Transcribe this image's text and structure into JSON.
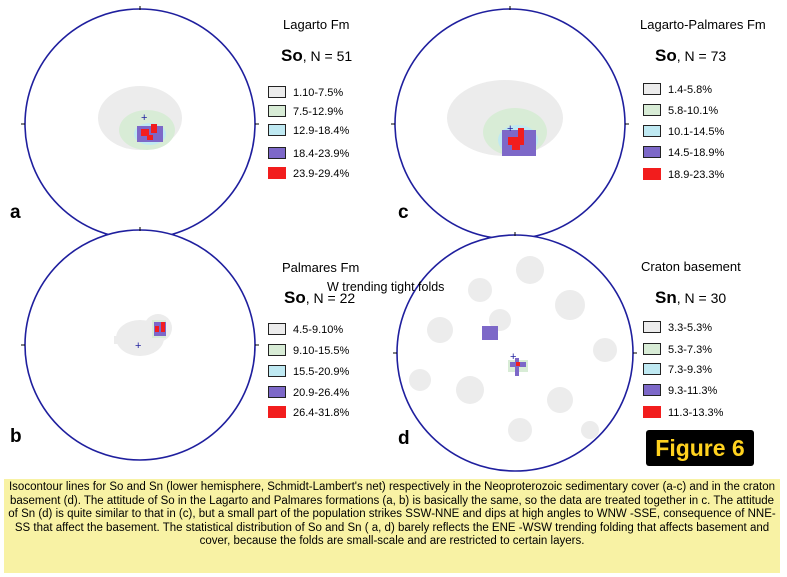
{
  "panels": [
    {
      "letter": "a",
      "formation": "Lagarto Fm",
      "symbol": "So",
      "n_text": ", N = 51",
      "legend": [
        "1.10-7.5%",
        "7.5-12.9%",
        "12.9-18.4%",
        "18.4-23.9%",
        "23.9-29.4%"
      ]
    },
    {
      "letter": "c",
      "formation": "Lagarto-Palmares Fm",
      "symbol": "So",
      "n_text": ", N = 73",
      "legend": [
        "1.4-5.8%",
        "5.8-10.1%",
        "10.1-14.5%",
        "14.5-18.9%",
        "18.9-23.3%"
      ]
    },
    {
      "letter": "b",
      "formation": "Palmares Fm",
      "symbol": "So",
      "n_text": ", N = 22",
      "legend": [
        "4.5-9.10%",
        "9.10-15.5%",
        "15.5-20.9%",
        "20.9-26.4%",
        "26.4-31.8%"
      ]
    },
    {
      "letter": "d",
      "formation": "Craton basement",
      "symbol": "Sn",
      "n_text": ", N = 30",
      "legend": [
        "3.3-5.3%",
        "5.3-7.3%",
        "7.3-9.3%",
        "9.3-11.3%",
        "11.3-13.3%"
      ]
    }
  ],
  "legend_colors": [
    "#ececec",
    "#d8ecd6",
    "#bfe9f2",
    "#7d68c8",
    "#f21d1d"
  ],
  "circle_color": "#1f1f9e",
  "overlay_text": "W trending tight folds",
  "figure_label": "Figure 6",
  "figure_label_color": "#ffd21f",
  "caption": "Isocontour lines for So and Sn (lower hemisphere, Schmidt-Lambert's net) respectively in the Neoproterozoic sedimentary cover (a-c) and in the craton basement (d). The attitude of So in the Lagarto and Palmares formations (a, b) is basically the same, so the data are treated together in c. The attitude of Sn (d) is quite similar to that in (c), but a small part of the population strikes SSW-NNE and dips at high angles to WNW -SSE, consequence of NNE-SS that affect the basement. The statistical distribution of So and Sn ( a, d) barely reflects the ENE -WSW trending folding that affects basement and cover, because the folds are small-scale and are restricted to certain layers."
}
